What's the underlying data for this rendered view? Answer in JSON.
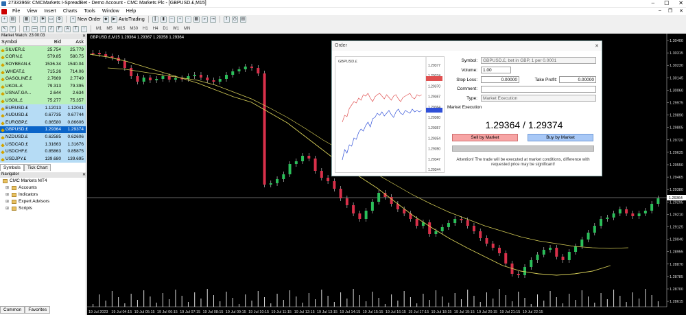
{
  "window": {
    "title": "27333969: CMCMarkets I-SpreadBet - Demo Account - CMC Markets Plc - [GBPUSD.£,M15]"
  },
  "menu": [
    "File",
    "View",
    "Insert",
    "Charts",
    "Tools",
    "Window",
    "Help"
  ],
  "toolbar": {
    "new_order": "New Order",
    "autotrading": "AutoTrading",
    "timeframes": [
      "M1",
      "M5",
      "M15",
      "M30",
      "H1",
      "H4",
      "D1",
      "W1",
      "MN"
    ]
  },
  "market_watch": {
    "title": "Market Watch: 23:00:03",
    "headers": {
      "symbol": "Symbol",
      "bid": "Bid",
      "ask": "Ask"
    },
    "rows": [
      {
        "symbol": "SILVER.£",
        "bid": "25.754",
        "ask": "25.779",
        "style": "mw-green"
      },
      {
        "symbol": "CORN.£",
        "bid": "579.85",
        "ask": "580.75",
        "style": "mw-green"
      },
      {
        "symbol": "SOYBEAN.£",
        "bid": "1536.34",
        "ask": "1540.04",
        "style": "mw-green"
      },
      {
        "symbol": "WHEAT.£",
        "bid": "715.26",
        "ask": "714.06",
        "style": "mw-green"
      },
      {
        "symbol": "GASOLINE.£",
        "bid": "2.7669",
        "ask": "2.7749",
        "style": "mw-green"
      },
      {
        "symbol": "UKOIL.£",
        "bid": "79.313",
        "ask": "79.395",
        "style": "mw-green"
      },
      {
        "symbol": "USNAT.GA...",
        "bid": "2.644",
        "ask": "2.634",
        "style": "mw-green"
      },
      {
        "symbol": "USOIL.£",
        "bid": "75.277",
        "ask": "75.357",
        "style": "mw-green"
      },
      {
        "symbol": "EURUSD.£",
        "bid": "1.12013",
        "ask": "1.12041",
        "style": "mw-blue"
      },
      {
        "symbol": "AUDUSD.£",
        "bid": "0.67735",
        "ask": "0.67744",
        "style": "mw-blue"
      },
      {
        "symbol": "EURGBP.£",
        "bid": "0.86580",
        "ask": "0.86606",
        "style": "mw-blue"
      },
      {
        "symbol": "GBPUSD.£",
        "bid": "1.29364",
        "ask": "1.29374",
        "style": "mw-sel"
      },
      {
        "symbol": "NZDUSD.£",
        "bid": "0.62585",
        "ask": "0.62606",
        "style": "mw-blue"
      },
      {
        "symbol": "USDCAD.£",
        "bid": "1.31663",
        "ask": "1.31676",
        "style": "mw-blue"
      },
      {
        "symbol": "USDCHF.£",
        "bid": "0.85863",
        "ask": "0.85875",
        "style": "mw-blue"
      },
      {
        "symbol": "USDJPY.£",
        "bid": "139.680",
        "ask": "139.695",
        "style": "mw-blue"
      }
    ],
    "tabs": [
      "Symbols",
      "Tick Chart"
    ]
  },
  "navigator": {
    "title": "Navigator",
    "root": "CMC Markets MT4",
    "items": [
      "Accounts",
      "Indicators",
      "Expert Advisors",
      "Scripts"
    ],
    "tabs": [
      "Common",
      "Favorites"
    ]
  },
  "chart": {
    "header": "GBPUSD.£,M15  1.29364 1.29367 1.29358 1.29364",
    "price_labels": [
      "1.30400",
      "1.30315",
      "1.30230",
      "1.30145",
      "1.30060",
      "1.29975",
      "1.29890",
      "1.29805",
      "1.29720",
      "1.29635",
      "1.29550",
      "1.29465",
      "1.29380",
      "1.29295",
      "1.29210",
      "1.29125",
      "1.29040",
      "1.28955",
      "1.28870",
      "1.28785",
      "1.28700",
      "1.28615"
    ],
    "current_price": "1.29364",
    "time_labels": [
      "19 Jul 2023",
      "19 Jul 04:15",
      "19 Jul 05:15",
      "19 Jul 06:15",
      "19 Jul 07:15",
      "19 Jul 08:15",
      "19 Jul 09:15",
      "19 Jul 10:15",
      "19 Jul 11:15",
      "19 Jul 12:15",
      "19 Jul 13:15",
      "19 Jul 14:15",
      "19 Jul 15:15",
      "19 Jul 16:15",
      "19 Jul 17:15",
      "19 Jul 18:15",
      "19 Jul 19:15",
      "19 Jul 20:15",
      "19 Jul 21:15",
      "19 Jul 22:15"
    ],
    "colors": {
      "bull": "#2bbf5a",
      "bear": "#d9304a",
      "ma": "#d8d058",
      "bg": "#000000"
    }
  },
  "order_dialog": {
    "title": "Order",
    "mini_chart_symbol": "GBPUSD.£",
    "mini_prices": [
      "1.29377",
      "1.29374",
      "1.29370",
      "1.29367",
      "1.29364",
      "1.29360",
      "1.29357",
      "1.29354",
      "1.29350",
      "1.29347",
      "1.29344"
    ],
    "symbol_label": "Symbol:",
    "symbol_value": "GBPUSD.£, bet in GBP, 1 per 0.0001",
    "volume_label": "Volume:",
    "volume_value": "1.00",
    "sl_label": "Stop Loss:",
    "sl_value": "0.00000",
    "tp_label": "Take Profit:",
    "tp_value": "0.00000",
    "comment_label": "Comment:",
    "comment_value": "",
    "type_label": "Type:",
    "type_value": "Market Execution",
    "section": "Market Execution",
    "price": "1.29364 / 1.29374",
    "sell": "Sell by Market",
    "buy": "Buy by Market",
    "warning": "Attention! The trade will be executed at market conditions, difference with requested price may be significant!"
  }
}
